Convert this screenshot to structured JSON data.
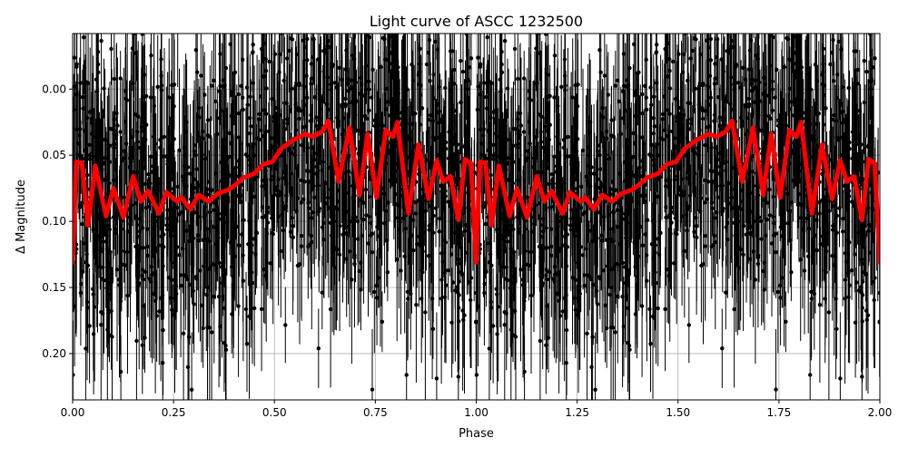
{
  "figure": {
    "title": "Light curve of ASCC 1232500",
    "xlabel": "Phase",
    "ylabel": "Δ Magnitude"
  },
  "colors": {
    "data_points": "#000000",
    "model_curve": "#ff0000",
    "grid": "#b0b0b0",
    "axes": "#000000",
    "background": "#ffffff"
  },
  "chart_data": {
    "type": "scatter",
    "title": "Light curve of ASCC 1232500",
    "xlabel": "Phase",
    "ylabel": "Δ Magnitude",
    "xlim": [
      0.0,
      2.0
    ],
    "ylim": [
      0.235,
      -0.042
    ],
    "y_inverted": true,
    "grid": true,
    "legend": null,
    "xticks": [
      "0.00",
      "0.25",
      "0.50",
      "0.75",
      "1.00",
      "1.25",
      "1.50",
      "1.75",
      "2.00"
    ],
    "yticks": [
      "0.00",
      "0.05",
      "0.10",
      "0.15",
      "0.20"
    ],
    "series": [
      {
        "name": "observations",
        "kind": "errorbar-scatter",
        "color": "#000000",
        "note": "dense phase-folded photometry with error bars, scatter roughly from -0.04 to 0.24 mag, repeated for phase 1-2"
      },
      {
        "name": "model",
        "kind": "line",
        "color": "#ff0000",
        "period_repeat": 1.0,
        "x": [
          0.0,
          0.009,
          0.023,
          0.038,
          0.056,
          0.083,
          0.101,
          0.126,
          0.15,
          0.169,
          0.187,
          0.214,
          0.232,
          0.259,
          0.27,
          0.292,
          0.312,
          0.337,
          0.36,
          0.387,
          0.405,
          0.423,
          0.45,
          0.472,
          0.495,
          0.517,
          0.544,
          0.576,
          0.596,
          0.619,
          0.634,
          0.659,
          0.686,
          0.711,
          0.731,
          0.753,
          0.776,
          0.793,
          0.805,
          0.832,
          0.857,
          0.882,
          0.902,
          0.918,
          0.936,
          0.956,
          0.972,
          0.987,
          1.0
        ],
        "values": [
          0.131,
          0.055,
          0.056,
          0.103,
          0.058,
          0.096,
          0.075,
          0.097,
          0.066,
          0.085,
          0.077,
          0.094,
          0.078,
          0.085,
          0.082,
          0.091,
          0.08,
          0.085,
          0.079,
          0.076,
          0.072,
          0.067,
          0.064,
          0.057,
          0.055,
          0.045,
          0.039,
          0.034,
          0.036,
          0.032,
          0.024,
          0.07,
          0.029,
          0.08,
          0.034,
          0.082,
          0.031,
          0.036,
          0.025,
          0.094,
          0.042,
          0.083,
          0.054,
          0.07,
          0.066,
          0.099,
          0.053,
          0.056,
          0.131
        ]
      }
    ]
  }
}
